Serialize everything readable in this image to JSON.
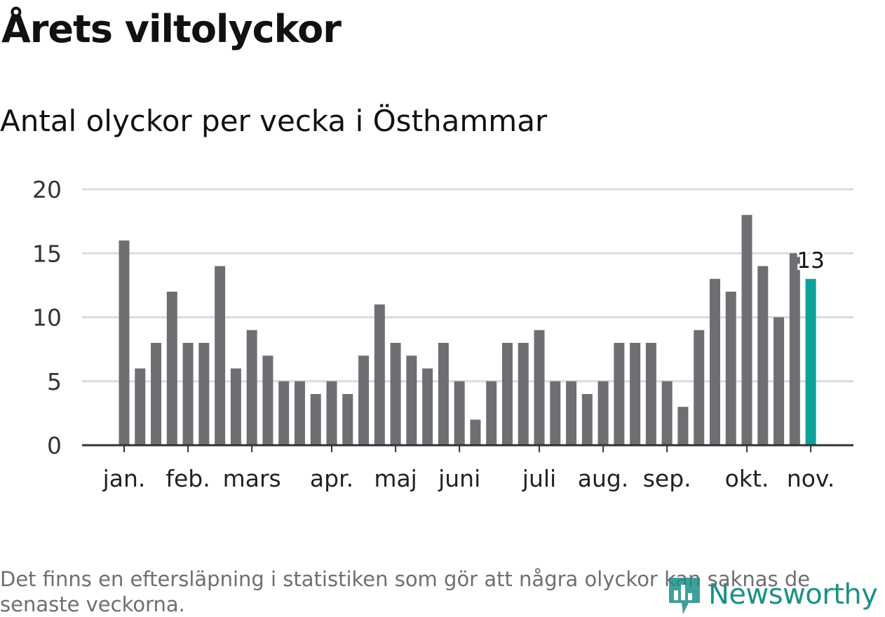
{
  "title": "Årets viltolyckor",
  "subtitle": "Antal olyckor per vecka i Östhammar",
  "footnote": "Det finns en eftersläpning i statistiken som gör att några olyckor kan saknas de senaste veckorna.",
  "logo_text": "Newsworthy",
  "colors": {
    "bar": "#6f6e73",
    "highlight": "#0ba39b",
    "grid": "#dcdcdc",
    "axis": "#333333",
    "logo": "#1f8f87"
  },
  "chart_data": {
    "type": "bar",
    "title": "Antal olyckor per vecka i Östhammar",
    "xlabel": "",
    "ylabel": "",
    "ylim": [
      0,
      20
    ],
    "yticks": [
      0,
      5,
      10,
      15,
      20
    ],
    "grid": true,
    "values": [
      16,
      6,
      8,
      12,
      8,
      8,
      14,
      6,
      9,
      7,
      5,
      5,
      4,
      5,
      4,
      7,
      11,
      8,
      7,
      6,
      8,
      5,
      2,
      5,
      8,
      8,
      9,
      5,
      5,
      4,
      5,
      8,
      8,
      8,
      5,
      3,
      9,
      13,
      12,
      18,
      14,
      10,
      15,
      13
    ],
    "highlight_index": 43,
    "highlight_label": "13",
    "month_ticks": [
      {
        "label": "jan.",
        "week": 0
      },
      {
        "label": "feb.",
        "week": 4
      },
      {
        "label": "mars",
        "week": 8
      },
      {
        "label": "apr.",
        "week": 13
      },
      {
        "label": "maj",
        "week": 17
      },
      {
        "label": "juni",
        "week": 21
      },
      {
        "label": "juli",
        "week": 26
      },
      {
        "label": "aug.",
        "week": 30
      },
      {
        "label": "sep.",
        "week": 34
      },
      {
        "label": "okt.",
        "week": 39
      },
      {
        "label": "nov.",
        "week": 43
      }
    ]
  }
}
